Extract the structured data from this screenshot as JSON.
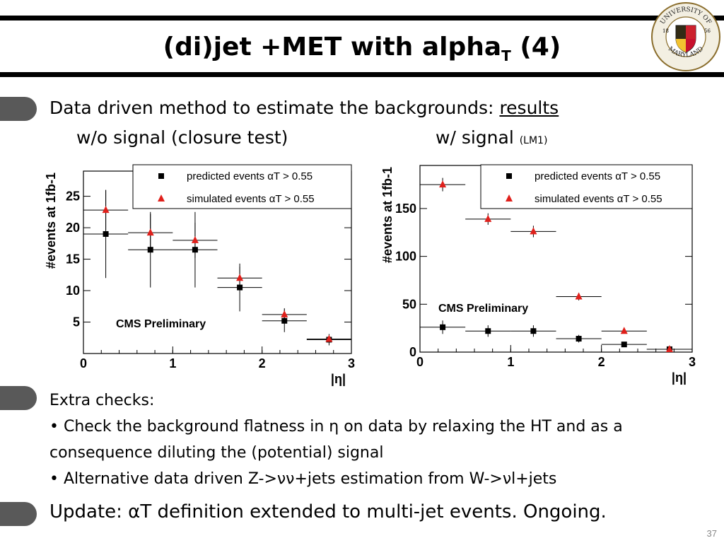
{
  "slide": {
    "title_main": "(di)jet +MET with alpha",
    "title_sub": "T",
    "title_end": " (4)",
    "page_number": "37"
  },
  "logo": {
    "top_text": "UNIVERSITY OF",
    "bottom_text": "MARYLAND",
    "year_left": "18",
    "year_right": "56"
  },
  "section1": {
    "text": "Data driven method to estimate the backgrounds: ",
    "link": "results",
    "left_label": "w/o signal (closure test)",
    "right_label": "w/ signal ",
    "right_small": "(LM1)"
  },
  "section2": {
    "heading": "Extra checks:",
    "bullet1": "• Check the background flatness in η on data by relaxing the HT and as a consequence diluting the (potential) signal",
    "bullet2": "• Alternative data driven Z->νν+jets estimation from W->νl+jets"
  },
  "section3": {
    "text": "Update: αT definition extended to multi-jet events. Ongoing."
  },
  "chart_data": [
    {
      "type": "scatter",
      "xlabel": "|η|",
      "ylabel": "#events at 1fb-1",
      "annotation": "CMS Preliminary",
      "xlim": [
        0,
        3
      ],
      "ylim": [
        0,
        29
      ],
      "xticks": [
        0,
        1,
        2,
        3
      ],
      "yticks": [
        5,
        10,
        15,
        20,
        25
      ],
      "legend_position": "top-right",
      "series": [
        {
          "name": "predicted events αT > 0.55",
          "marker": "square",
          "color": "#000000",
          "x": [
            0.25,
            0.75,
            1.25,
            1.75,
            2.25,
            2.75
          ],
          "y": [
            19,
            16.5,
            16.5,
            10.5,
            5.2,
            2.2
          ],
          "yerr": [
            7,
            6,
            6,
            3.8,
            1.8,
            0.9
          ]
        },
        {
          "name": "simulated events αT > 0.55",
          "marker": "triangle",
          "color": "#e0201b",
          "x": [
            0.25,
            0.75,
            1.25,
            1.75,
            2.25,
            2.75
          ],
          "y": [
            22.8,
            19.2,
            18,
            12,
            6.2,
            2.3
          ],
          "yerr": [
            3.2,
            3,
            2.8,
            1.8,
            1,
            0.5
          ]
        }
      ]
    },
    {
      "type": "scatter",
      "xlabel": "|η|",
      "ylabel": "#events at 1fb-1",
      "annotation": "CMS Preliminary",
      "xlim": [
        0,
        3
      ],
      "ylim": [
        0,
        195
      ],
      "xticks": [
        0,
        1,
        2,
        3
      ],
      "yticks": [
        0,
        50,
        100,
        150
      ],
      "legend_position": "top-right",
      "series": [
        {
          "name": "predicted events αT > 0.55",
          "marker": "square",
          "color": "#000000",
          "x": [
            0.25,
            0.75,
            1.25,
            1.75,
            2.25,
            2.75
          ],
          "y": [
            26,
            22,
            22,
            14,
            8,
            3
          ],
          "yerr": [
            7,
            6,
            6,
            4,
            2,
            1
          ]
        },
        {
          "name": "simulated events αT > 0.55",
          "marker": "triangle",
          "color": "#e0201b",
          "x": [
            0.25,
            0.75,
            1.25,
            1.75,
            2.25,
            2.75
          ],
          "y": [
            175,
            139,
            126,
            58,
            22,
            3
          ],
          "yerr": [
            7,
            6,
            6,
            4,
            2,
            1
          ]
        }
      ]
    }
  ]
}
